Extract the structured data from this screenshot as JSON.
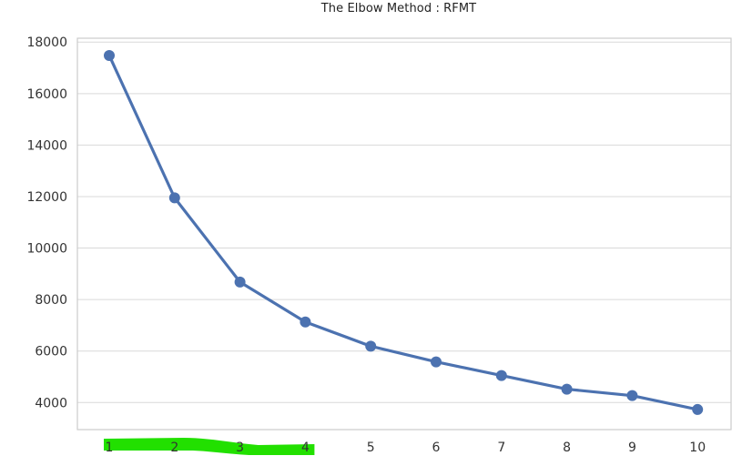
{
  "chart_data": {
    "type": "line",
    "title": "The Elbow Method : RFMT",
    "xlabel": "",
    "ylabel": "",
    "categories": [
      "1",
      "2",
      "3",
      "4",
      "5",
      "6",
      "7",
      "8",
      "9",
      "10"
    ],
    "series": [
      {
        "values": [
          17480,
          11950,
          8680,
          7130,
          6190,
          5580,
          5050,
          4520,
          4270,
          3730
        ],
        "color": "#4c72b0"
      }
    ],
    "yticks": [
      4000,
      6000,
      8000,
      10000,
      12000,
      14000,
      16000,
      18000
    ],
    "ylim": [
      2950,
      18150
    ],
    "grid": true,
    "highlight": {
      "categories": [
        "1",
        "2",
        "3",
        "4"
      ],
      "color": "#22e000"
    }
  }
}
